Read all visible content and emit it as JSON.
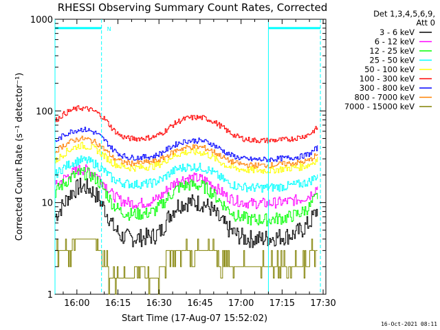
{
  "chart_data": {
    "type": "line",
    "title": "RHESSI Observing Summary Count Rates, Corrected",
    "xlabel": "Start Time (17-Aug-07 15:52:02)",
    "ylabel": "Corrected Count Rate (s⁻¹ detector⁻¹)",
    "yscale": "log",
    "ylim": [
      1,
      1000
    ],
    "xlim": [
      "15:52",
      "17:31"
    ],
    "x_ticks": [
      "16:00",
      "16:15",
      "16:30",
      "16:45",
      "17:00",
      "17:15",
      "17:30"
    ],
    "y_ticks": [
      "1",
      "10",
      "100",
      "1000"
    ],
    "legend_header": [
      "Det 1,3,4,5,6,9,",
      "Att 0"
    ],
    "legend_position": "right",
    "x": [
      "15:52",
      "15:55",
      "15:58",
      "16:01",
      "16:04",
      "16:07",
      "16:10",
      "16:13",
      "16:16",
      "16:19",
      "16:22",
      "16:25",
      "16:28",
      "16:31",
      "16:34",
      "16:37",
      "16:40",
      "16:43",
      "16:46",
      "16:49",
      "16:52",
      "16:55",
      "16:58",
      "17:01",
      "17:04",
      "17:07",
      "17:10",
      "17:13",
      "17:16",
      "17:19",
      "17:22",
      "17:25",
      "17:28"
    ],
    "series": [
      {
        "name": "3 - 6 keV",
        "color": "#000000",
        "noise": 0.1,
        "values": [
          7,
          9.5,
          13,
          15,
          14.5,
          12,
          8.5,
          5.5,
          4.3,
          4.1,
          4.1,
          4.2,
          4.3,
          5,
          7.5,
          9.5,
          10,
          10,
          9.8,
          8.5,
          6.5,
          5.2,
          4.5,
          4.1,
          4.0,
          4.0,
          4.1,
          4.2,
          4.3,
          4.5,
          5,
          6,
          8.5
        ]
      },
      {
        "name": "6 - 12 keV",
        "color": "#ff00ff",
        "noise": 0.06,
        "values": [
          15,
          18,
          21,
          23,
          22.5,
          20,
          16,
          12,
          10.5,
          10,
          9.8,
          10,
          10.5,
          12,
          15,
          17.5,
          18.5,
          18.5,
          18,
          16,
          13.5,
          11.5,
          10.5,
          10,
          9.8,
          9.8,
          9.8,
          10,
          10.2,
          10.5,
          11,
          12,
          15
        ]
      },
      {
        "name": "12 - 25 keV",
        "color": "#00ff00",
        "noise": 0.07,
        "values": [
          13,
          16,
          19,
          21,
          20.5,
          18,
          13.5,
          9.5,
          8,
          7.5,
          7.5,
          7.6,
          8,
          9.5,
          12,
          14.5,
          15.5,
          15.5,
          15,
          13,
          10.5,
          8.5,
          7.2,
          6.8,
          6.5,
          6.5,
          6.5,
          6.7,
          6.8,
          7.2,
          7.8,
          9,
          12
        ]
      },
      {
        "name": "25 - 50 keV",
        "color": "#00ffff",
        "noise": 0.05,
        "values": [
          20,
          24,
          27,
          29,
          28.5,
          26,
          22,
          18,
          16.5,
          16,
          15.8,
          16,
          16.5,
          18,
          21,
          23.5,
          24.5,
          24.5,
          24,
          22,
          19,
          16.5,
          15.2,
          14.8,
          14.5,
          14.5,
          14.5,
          14.8,
          15,
          15.5,
          16,
          17,
          20
        ]
      },
      {
        "name": "50 - 100 keV",
        "color": "#ffff00",
        "noise": 0.04,
        "values": [
          28,
          34,
          39,
          42,
          41,
          38,
          32,
          27,
          25,
          24,
          24,
          24.5,
          25,
          27,
          31,
          34,
          35.5,
          35.5,
          35,
          32,
          28,
          25,
          23.5,
          23,
          22.5,
          22.5,
          22.5,
          23,
          23.5,
          24,
          24.5,
          26,
          30
        ]
      },
      {
        "name": "100 - 300 keV",
        "color": "#ff0000",
        "noise": 0.03,
        "values": [
          78,
          92,
          102,
          108,
          105,
          97,
          82,
          63,
          53,
          50,
          50,
          50.5,
          52,
          57,
          67,
          77,
          83,
          85,
          84,
          79,
          70,
          60,
          53,
          49.5,
          48,
          47.5,
          47.5,
          48,
          48.5,
          50,
          52,
          56,
          66
        ]
      },
      {
        "name": "300 - 800 keV",
        "color": "#0000ff",
        "noise": 0.03,
        "values": [
          46,
          54,
          60,
          63,
          62,
          57,
          48,
          38,
          33,
          31,
          31,
          31.5,
          32,
          35,
          40,
          44.5,
          47,
          47.5,
          47,
          44,
          39,
          34,
          31.5,
          30,
          29.5,
          29.5,
          29.5,
          30,
          30.5,
          31,
          32,
          34,
          40
        ]
      },
      {
        "name": "800 - 7000 keV",
        "color": "#ff8000",
        "noise": 0.03,
        "values": [
          36,
          42,
          47,
          50,
          49,
          45,
          38,
          31,
          28,
          27,
          27,
          27.5,
          28,
          30,
          34,
          38,
          40,
          40.5,
          40,
          37,
          33,
          29,
          27,
          26,
          25.5,
          25.5,
          25.5,
          26,
          26.5,
          27,
          27.5,
          29,
          34
        ]
      },
      {
        "name": "7000 - 15000 keV",
        "color": "#808000",
        "noise": 0.0,
        "values": [
          3,
          3,
          3.5,
          4,
          4,
          3.5,
          2,
          1.5,
          1.5,
          1.5,
          1.5,
          1.5,
          1.3,
          2,
          3,
          3,
          3,
          3,
          3,
          3,
          2,
          2,
          2,
          2,
          2,
          2,
          2,
          2,
          2,
          2,
          2,
          2.5,
          3
        ]
      }
    ],
    "flags": {
      "night_intervals": [
        [
          "15:52",
          "16:09"
        ],
        [
          "17:10",
          "17:29"
        ]
      ],
      "night_letter": "N",
      "night_color": "#00ffff",
      "level": 800
    }
  },
  "timestamp": "16-Oct-2021 08:11"
}
